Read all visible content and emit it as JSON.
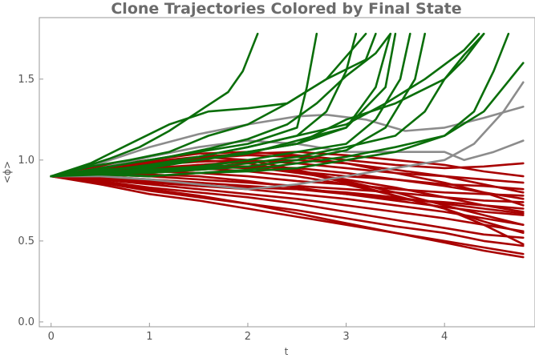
{
  "chart_data": {
    "type": "line",
    "title": "Clone Trajectories Colored by Final State",
    "xlabel": "t",
    "ylabel": "<ϕ>",
    "xlim": [
      -0.12,
      4.92
    ],
    "ylim": [
      -0.03,
      1.88
    ],
    "xticks": [
      0,
      1,
      2,
      3,
      4
    ],
    "yticks": [
      0.0,
      0.5,
      1.0,
      1.5
    ],
    "ytick_labels": [
      "0.0",
      "0.5",
      "1.0",
      "1.5"
    ],
    "grid": false,
    "legend": "none",
    "colors": {
      "green": "#0a6e0a",
      "gray": "#8c8c8c",
      "red": "#a80000"
    },
    "series": [
      {
        "color": "green",
        "x": [
          0,
          0.3,
          0.6,
          0.9,
          1.2,
          1.5,
          1.8,
          1.95,
          2.1
        ],
        "y": [
          0.9,
          0.95,
          1.01,
          1.08,
          1.18,
          1.3,
          1.42,
          1.55,
          1.78
        ]
      },
      {
        "color": "green",
        "x": [
          0,
          0.4,
          0.8,
          1.2,
          1.6,
          2.0,
          2.4,
          2.8,
          3.2
        ],
        "y": [
          0.9,
          0.98,
          1.1,
          1.22,
          1.3,
          1.32,
          1.35,
          1.5,
          1.78
        ]
      },
      {
        "color": "green",
        "x": [
          0,
          0.4,
          0.8,
          1.2,
          1.6,
          2.0,
          2.4,
          2.8,
          3.2,
          3.3
        ],
        "y": [
          0.9,
          0.96,
          1.0,
          1.05,
          1.15,
          1.22,
          1.35,
          1.5,
          1.62,
          1.78
        ]
      },
      {
        "color": "green",
        "x": [
          0,
          0.4,
          0.8,
          1.2,
          1.6,
          2.0,
          2.4,
          2.7,
          3.0,
          3.3,
          3.45
        ],
        "y": [
          0.9,
          0.94,
          0.98,
          1.02,
          1.07,
          1.13,
          1.22,
          1.35,
          1.52,
          1.66,
          1.78
        ]
      },
      {
        "color": "green",
        "x": [
          0,
          0.5,
          1.0,
          1.5,
          2.0,
          2.5,
          2.6,
          2.7
        ],
        "y": [
          0.9,
          0.95,
          1.0,
          1.05,
          1.1,
          1.2,
          1.45,
          1.78
        ]
      },
      {
        "color": "green",
        "x": [
          0,
          0.5,
          1.0,
          1.5,
          2.0,
          2.5,
          2.8,
          3.0,
          3.1
        ],
        "y": [
          0.9,
          0.93,
          0.97,
          1.02,
          1.08,
          1.15,
          1.3,
          1.55,
          1.78
        ]
      },
      {
        "color": "green",
        "x": [
          0,
          0.5,
          1.0,
          1.5,
          2.0,
          2.5,
          3.0,
          3.3,
          3.45
        ],
        "y": [
          0.9,
          0.94,
          0.96,
          1.0,
          1.04,
          1.12,
          1.2,
          1.45,
          1.78
        ]
      },
      {
        "color": "green",
        "x": [
          0,
          0.5,
          1.0,
          1.5,
          2.0,
          2.5,
          3.0,
          3.3,
          3.55,
          3.65
        ],
        "y": [
          0.9,
          0.92,
          0.94,
          0.96,
          1.0,
          1.05,
          1.1,
          1.25,
          1.5,
          1.78
        ]
      },
      {
        "color": "green",
        "x": [
          0,
          0.5,
          1.0,
          1.5,
          2.0,
          2.5,
          3.0,
          3.4,
          3.7,
          3.8
        ],
        "y": [
          0.9,
          0.92,
          0.92,
          0.94,
          0.96,
          1.0,
          1.06,
          1.2,
          1.5,
          1.78
        ]
      },
      {
        "color": "green",
        "x": [
          0,
          0.5,
          1.0,
          1.5,
          2.0,
          2.5,
          3.0,
          3.4,
          3.8,
          4.2,
          4.35
        ],
        "y": [
          0.9,
          0.93,
          0.97,
          1.02,
          1.08,
          1.15,
          1.22,
          1.35,
          1.5,
          1.68,
          1.78
        ]
      },
      {
        "color": "green",
        "x": [
          0,
          0.5,
          1.0,
          1.5,
          2.0,
          2.5,
          3.0,
          3.5,
          3.8,
          4.0,
          4.2,
          4.4
        ],
        "y": [
          0.9,
          0.92,
          0.93,
          0.95,
          0.98,
          1.02,
          1.08,
          1.15,
          1.3,
          1.5,
          1.62,
          1.78
        ]
      },
      {
        "color": "green",
        "x": [
          0,
          0.5,
          1.0,
          1.5,
          2.0,
          2.5,
          3.0,
          3.5,
          4.0,
          4.3,
          4.5,
          4.65
        ],
        "y": [
          0.9,
          0.91,
          0.9,
          0.92,
          0.94,
          0.98,
          1.02,
          1.08,
          1.15,
          1.3,
          1.55,
          1.78
        ]
      },
      {
        "color": "green",
        "x": [
          0,
          0.5,
          1.0,
          1.5,
          2.0,
          2.5,
          3.0,
          3.5,
          4.0,
          4.2,
          4.4
        ],
        "y": [
          0.9,
          0.92,
          0.95,
          1.0,
          1.05,
          1.1,
          1.25,
          1.35,
          1.5,
          1.65,
          1.78
        ]
      },
      {
        "color": "green",
        "x": [
          0,
          0.5,
          1.0,
          1.5,
          2.0,
          2.5,
          3.0,
          3.5,
          4.0,
          4.4,
          4.6,
          4.8
        ],
        "y": [
          0.9,
          0.92,
          0.9,
          0.92,
          0.93,
          0.95,
          1.0,
          1.05,
          1.15,
          1.3,
          1.45,
          1.6
        ]
      },
      {
        "color": "green",
        "x": [
          0,
          0.5,
          1.0,
          1.5,
          2.0,
          2.5,
          3.0,
          3.4,
          3.5
        ],
        "y": [
          0.9,
          0.93,
          0.97,
          1.0,
          1.05,
          1.1,
          1.2,
          1.45,
          1.78
        ]
      },
      {
        "color": "gray",
        "x": [
          0,
          0.5,
          1.0,
          1.5,
          2.0,
          2.5,
          2.8,
          3.2,
          3.6,
          4.0,
          4.4,
          4.8
        ],
        "y": [
          0.9,
          0.98,
          1.08,
          1.16,
          1.22,
          1.27,
          1.28,
          1.25,
          1.18,
          1.2,
          1.26,
          1.33
        ]
      },
      {
        "color": "gray",
        "x": [
          0,
          0.5,
          1.0,
          1.5,
          2.0,
          2.5,
          3.0,
          3.5,
          4.0,
          4.2,
          4.5,
          4.8
        ],
        "y": [
          0.9,
          0.95,
          1.02,
          1.08,
          1.12,
          1.1,
          1.05,
          1.05,
          1.05,
          1.0,
          1.05,
          1.12
        ]
      },
      {
        "color": "gray",
        "x": [
          0,
          0.5,
          1.0,
          1.5,
          2.0,
          2.5,
          3.0,
          3.5,
          4.0,
          4.3,
          4.6,
          4.8
        ],
        "y": [
          0.9,
          0.9,
          0.88,
          0.85,
          0.82,
          0.85,
          0.9,
          0.95,
          1.0,
          1.1,
          1.3,
          1.48
        ]
      },
      {
        "color": "red",
        "x": [
          0,
          0.5,
          1.0,
          1.5,
          2.0,
          2.5,
          3.0,
          3.5,
          4.0,
          4.4,
          4.8
        ],
        "y": [
          0.9,
          0.96,
          1.0,
          1.04,
          1.05,
          1.03,
          1.0,
          0.97,
          0.95,
          0.96,
          0.98
        ]
      },
      {
        "color": "red",
        "x": [
          0,
          0.5,
          1.0,
          1.5,
          2.0,
          2.5,
          3.0,
          3.5,
          4.0,
          4.4,
          4.8
        ],
        "y": [
          0.9,
          0.95,
          0.98,
          1.02,
          1.04,
          1.05,
          1.03,
          1.0,
          0.97,
          0.93,
          0.9
        ]
      },
      {
        "color": "red",
        "x": [
          0,
          0.5,
          1.0,
          1.5,
          2.0,
          2.5,
          3.0,
          3.5,
          4.0,
          4.4,
          4.8
        ],
        "y": [
          0.9,
          0.94,
          0.97,
          0.99,
          1.0,
          0.98,
          0.95,
          0.92,
          0.9,
          0.88,
          0.86
        ]
      },
      {
        "color": "red",
        "x": [
          0,
          0.5,
          1.0,
          1.5,
          2.0,
          2.5,
          3.0,
          3.5,
          4.0,
          4.4,
          4.8
        ],
        "y": [
          0.9,
          0.93,
          0.95,
          0.96,
          0.95,
          0.93,
          0.9,
          0.88,
          0.85,
          0.84,
          0.82
        ]
      },
      {
        "color": "red",
        "x": [
          0,
          0.5,
          1.0,
          1.5,
          2.0,
          2.5,
          3.0,
          3.5,
          4.0,
          4.4,
          4.8
        ],
        "y": [
          0.9,
          0.92,
          0.93,
          0.92,
          0.9,
          0.87,
          0.85,
          0.82,
          0.8,
          0.79,
          0.78
        ]
      },
      {
        "color": "red",
        "x": [
          0,
          0.5,
          1.0,
          1.5,
          2.0,
          2.5,
          3.0,
          3.5,
          4.0,
          4.4,
          4.8
        ],
        "y": [
          0.9,
          0.91,
          0.9,
          0.88,
          0.86,
          0.84,
          0.82,
          0.8,
          0.77,
          0.75,
          0.74
        ]
      },
      {
        "color": "red",
        "x": [
          0,
          0.5,
          1.0,
          1.5,
          2.0,
          2.5,
          3.0,
          3.5,
          4.0,
          4.4,
          4.8
        ],
        "y": [
          0.9,
          0.9,
          0.88,
          0.86,
          0.84,
          0.82,
          0.79,
          0.76,
          0.74,
          0.72,
          0.7
        ]
      },
      {
        "color": "red",
        "x": [
          0,
          0.5,
          1.0,
          1.5,
          2.0,
          2.5,
          3.0,
          3.5,
          4.0,
          4.4,
          4.8
        ],
        "y": [
          0.9,
          0.92,
          0.91,
          0.9,
          0.87,
          0.83,
          0.79,
          0.75,
          0.71,
          0.68,
          0.66
        ]
      },
      {
        "color": "red",
        "x": [
          0,
          0.5,
          1.0,
          1.5,
          2.0,
          2.5,
          3.0,
          3.5,
          4.0,
          4.4,
          4.8
        ],
        "y": [
          0.9,
          0.9,
          0.87,
          0.84,
          0.82,
          0.79,
          0.76,
          0.72,
          0.68,
          0.64,
          0.6
        ]
      },
      {
        "color": "red",
        "x": [
          0,
          0.5,
          1.0,
          1.5,
          2.0,
          2.5,
          3.0,
          3.5,
          4.0,
          4.4,
          4.8
        ],
        "y": [
          0.9,
          0.88,
          0.85,
          0.82,
          0.79,
          0.76,
          0.72,
          0.68,
          0.64,
          0.6,
          0.56
        ]
      },
      {
        "color": "red",
        "x": [
          0,
          0.5,
          1.0,
          1.5,
          2.0,
          2.5,
          3.0,
          3.5,
          4.0,
          4.4,
          4.8
        ],
        "y": [
          0.9,
          0.87,
          0.83,
          0.8,
          0.77,
          0.73,
          0.68,
          0.63,
          0.58,
          0.54,
          0.52
        ]
      },
      {
        "color": "red",
        "x": [
          0,
          0.5,
          1.0,
          1.5,
          2.0,
          2.5,
          3.0,
          3.5,
          4.0,
          4.4,
          4.8
        ],
        "y": [
          0.9,
          0.86,
          0.81,
          0.77,
          0.73,
          0.69,
          0.64,
          0.59,
          0.55,
          0.5,
          0.47
        ]
      },
      {
        "color": "red",
        "x": [
          0,
          0.5,
          1.0,
          1.5,
          2.0,
          2.5,
          3.0,
          3.5,
          4.0,
          4.4,
          4.8
        ],
        "y": [
          0.9,
          0.85,
          0.79,
          0.75,
          0.7,
          0.65,
          0.6,
          0.55,
          0.5,
          0.46,
          0.42
        ]
      },
      {
        "color": "red",
        "x": [
          0,
          0.5,
          1.0,
          1.5,
          2.0,
          2.5,
          3.0,
          3.5,
          4.0,
          4.4,
          4.8
        ],
        "y": [
          0.9,
          0.86,
          0.82,
          0.78,
          0.73,
          0.67,
          0.61,
          0.55,
          0.49,
          0.44,
          0.4
        ]
      },
      {
        "color": "red",
        "x": [
          0,
          0.5,
          1.0,
          1.5,
          2.0,
          2.5,
          3.0,
          3.5,
          4.0,
          4.4,
          4.8
        ],
        "y": [
          0.9,
          0.93,
          0.96,
          1.0,
          0.98,
          0.93,
          0.86,
          0.78,
          0.7,
          0.62,
          0.55
        ]
      },
      {
        "color": "red",
        "x": [
          0,
          0.5,
          1.0,
          1.5,
          2.0,
          2.5,
          3.0,
          3.5,
          4.0,
          4.4,
          4.8
        ],
        "y": [
          0.9,
          0.95,
          0.99,
          1.02,
          1.0,
          0.94,
          0.87,
          0.8,
          0.72,
          0.66,
          0.6
        ]
      },
      {
        "color": "red",
        "x": [
          0,
          0.5,
          1.0,
          1.5,
          2.0,
          2.5,
          3.0,
          3.5,
          4.0,
          4.4,
          4.8
        ],
        "y": [
          0.9,
          0.92,
          0.95,
          0.97,
          0.96,
          0.92,
          0.88,
          0.83,
          0.77,
          0.72,
          0.68
        ]
      },
      {
        "color": "red",
        "x": [
          0,
          0.5,
          1.0,
          1.5,
          2.0,
          2.5,
          3.0,
          3.5,
          4.0,
          4.4,
          4.8
        ],
        "y": [
          0.9,
          0.91,
          0.92,
          0.94,
          0.96,
          0.95,
          0.92,
          0.88,
          0.84,
          0.8,
          0.76
        ]
      },
      {
        "color": "red",
        "x": [
          0,
          0.5,
          1.0,
          1.5,
          2.0,
          2.5,
          3.0,
          3.5,
          4.0,
          4.4,
          4.8
        ],
        "y": [
          0.9,
          0.94,
          0.98,
          1.01,
          1.03,
          1.02,
          0.98,
          0.92,
          0.86,
          0.8,
          0.72
        ]
      },
      {
        "color": "red",
        "x": [
          0,
          0.5,
          1.0,
          1.5,
          2.0,
          2.5,
          3.0,
          3.5,
          4.0,
          4.4,
          4.8
        ],
        "y": [
          0.9,
          0.89,
          0.86,
          0.84,
          0.83,
          0.82,
          0.8,
          0.77,
          0.73,
          0.7,
          0.67
        ]
      },
      {
        "color": "red",
        "x": [
          0,
          0.5,
          1.0,
          1.5,
          2.0,
          2.5,
          3.0,
          3.5,
          4.0,
          4.4,
          4.8
        ],
        "y": [
          0.9,
          0.93,
          0.95,
          0.95,
          0.93,
          0.9,
          0.85,
          0.78,
          0.7,
          0.6,
          0.48
        ]
      },
      {
        "color": "red",
        "x": [
          0,
          0.5,
          1.0,
          1.5,
          2.0,
          2.5,
          3.0,
          3.5,
          4.0,
          4.4,
          4.8
        ],
        "y": [
          0.9,
          0.92,
          0.94,
          0.97,
          0.99,
          1.0,
          0.98,
          0.94,
          0.9,
          0.85,
          0.8
        ]
      }
    ]
  }
}
